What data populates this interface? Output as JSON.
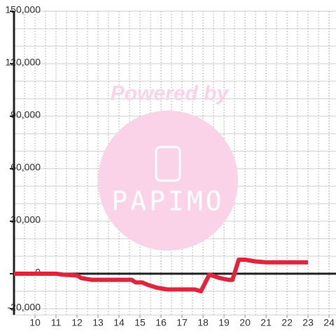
{
  "chart_data": {
    "type": "line",
    "annotations": [
      "Powered by",
      "PAPIMO"
    ],
    "x": [
      9,
      10,
      11,
      11.3,
      12,
      12.2,
      12.7,
      13,
      14,
      14.6,
      14.8,
      15.1,
      15.4,
      15.8,
      16.3,
      17,
      17.6,
      17.9,
      18.3,
      18.8,
      19.2,
      19.4,
      19.7,
      20,
      20.5,
      21,
      23
    ],
    "series": [
      {
        "color": "#e8213a",
        "values": [
          0,
          0,
          0,
          -500,
          -1000,
          -2500,
          -3500,
          -3500,
          -3500,
          -3500,
          -5000,
          -5000,
          -6500,
          -8000,
          -9000,
          -9000,
          -9000,
          -10000,
          -500,
          -2500,
          -3500,
          -3500,
          8000,
          8000,
          7000,
          6500,
          6500
        ]
      }
    ],
    "xlim": [
      9,
      24.33
    ],
    "ylim": [
      -23600,
      150000
    ],
    "xticks": [
      10,
      11,
      12,
      13,
      14,
      15,
      16,
      17,
      18,
      19,
      20,
      21,
      22,
      23,
      24
    ],
    "yticks": [
      {
        "value": -20000,
        "label": "-20,000"
      },
      0,
      {
        "value": 30000,
        "label": "30,000"
      },
      {
        "value": 60000,
        "label": "60,000"
      },
      {
        "value": 90000,
        "label": "90,000"
      },
      {
        "value": 120000,
        "label": "120,000"
      },
      {
        "value": 150000,
        "label": "150,000"
      }
    ],
    "grid": true
  }
}
